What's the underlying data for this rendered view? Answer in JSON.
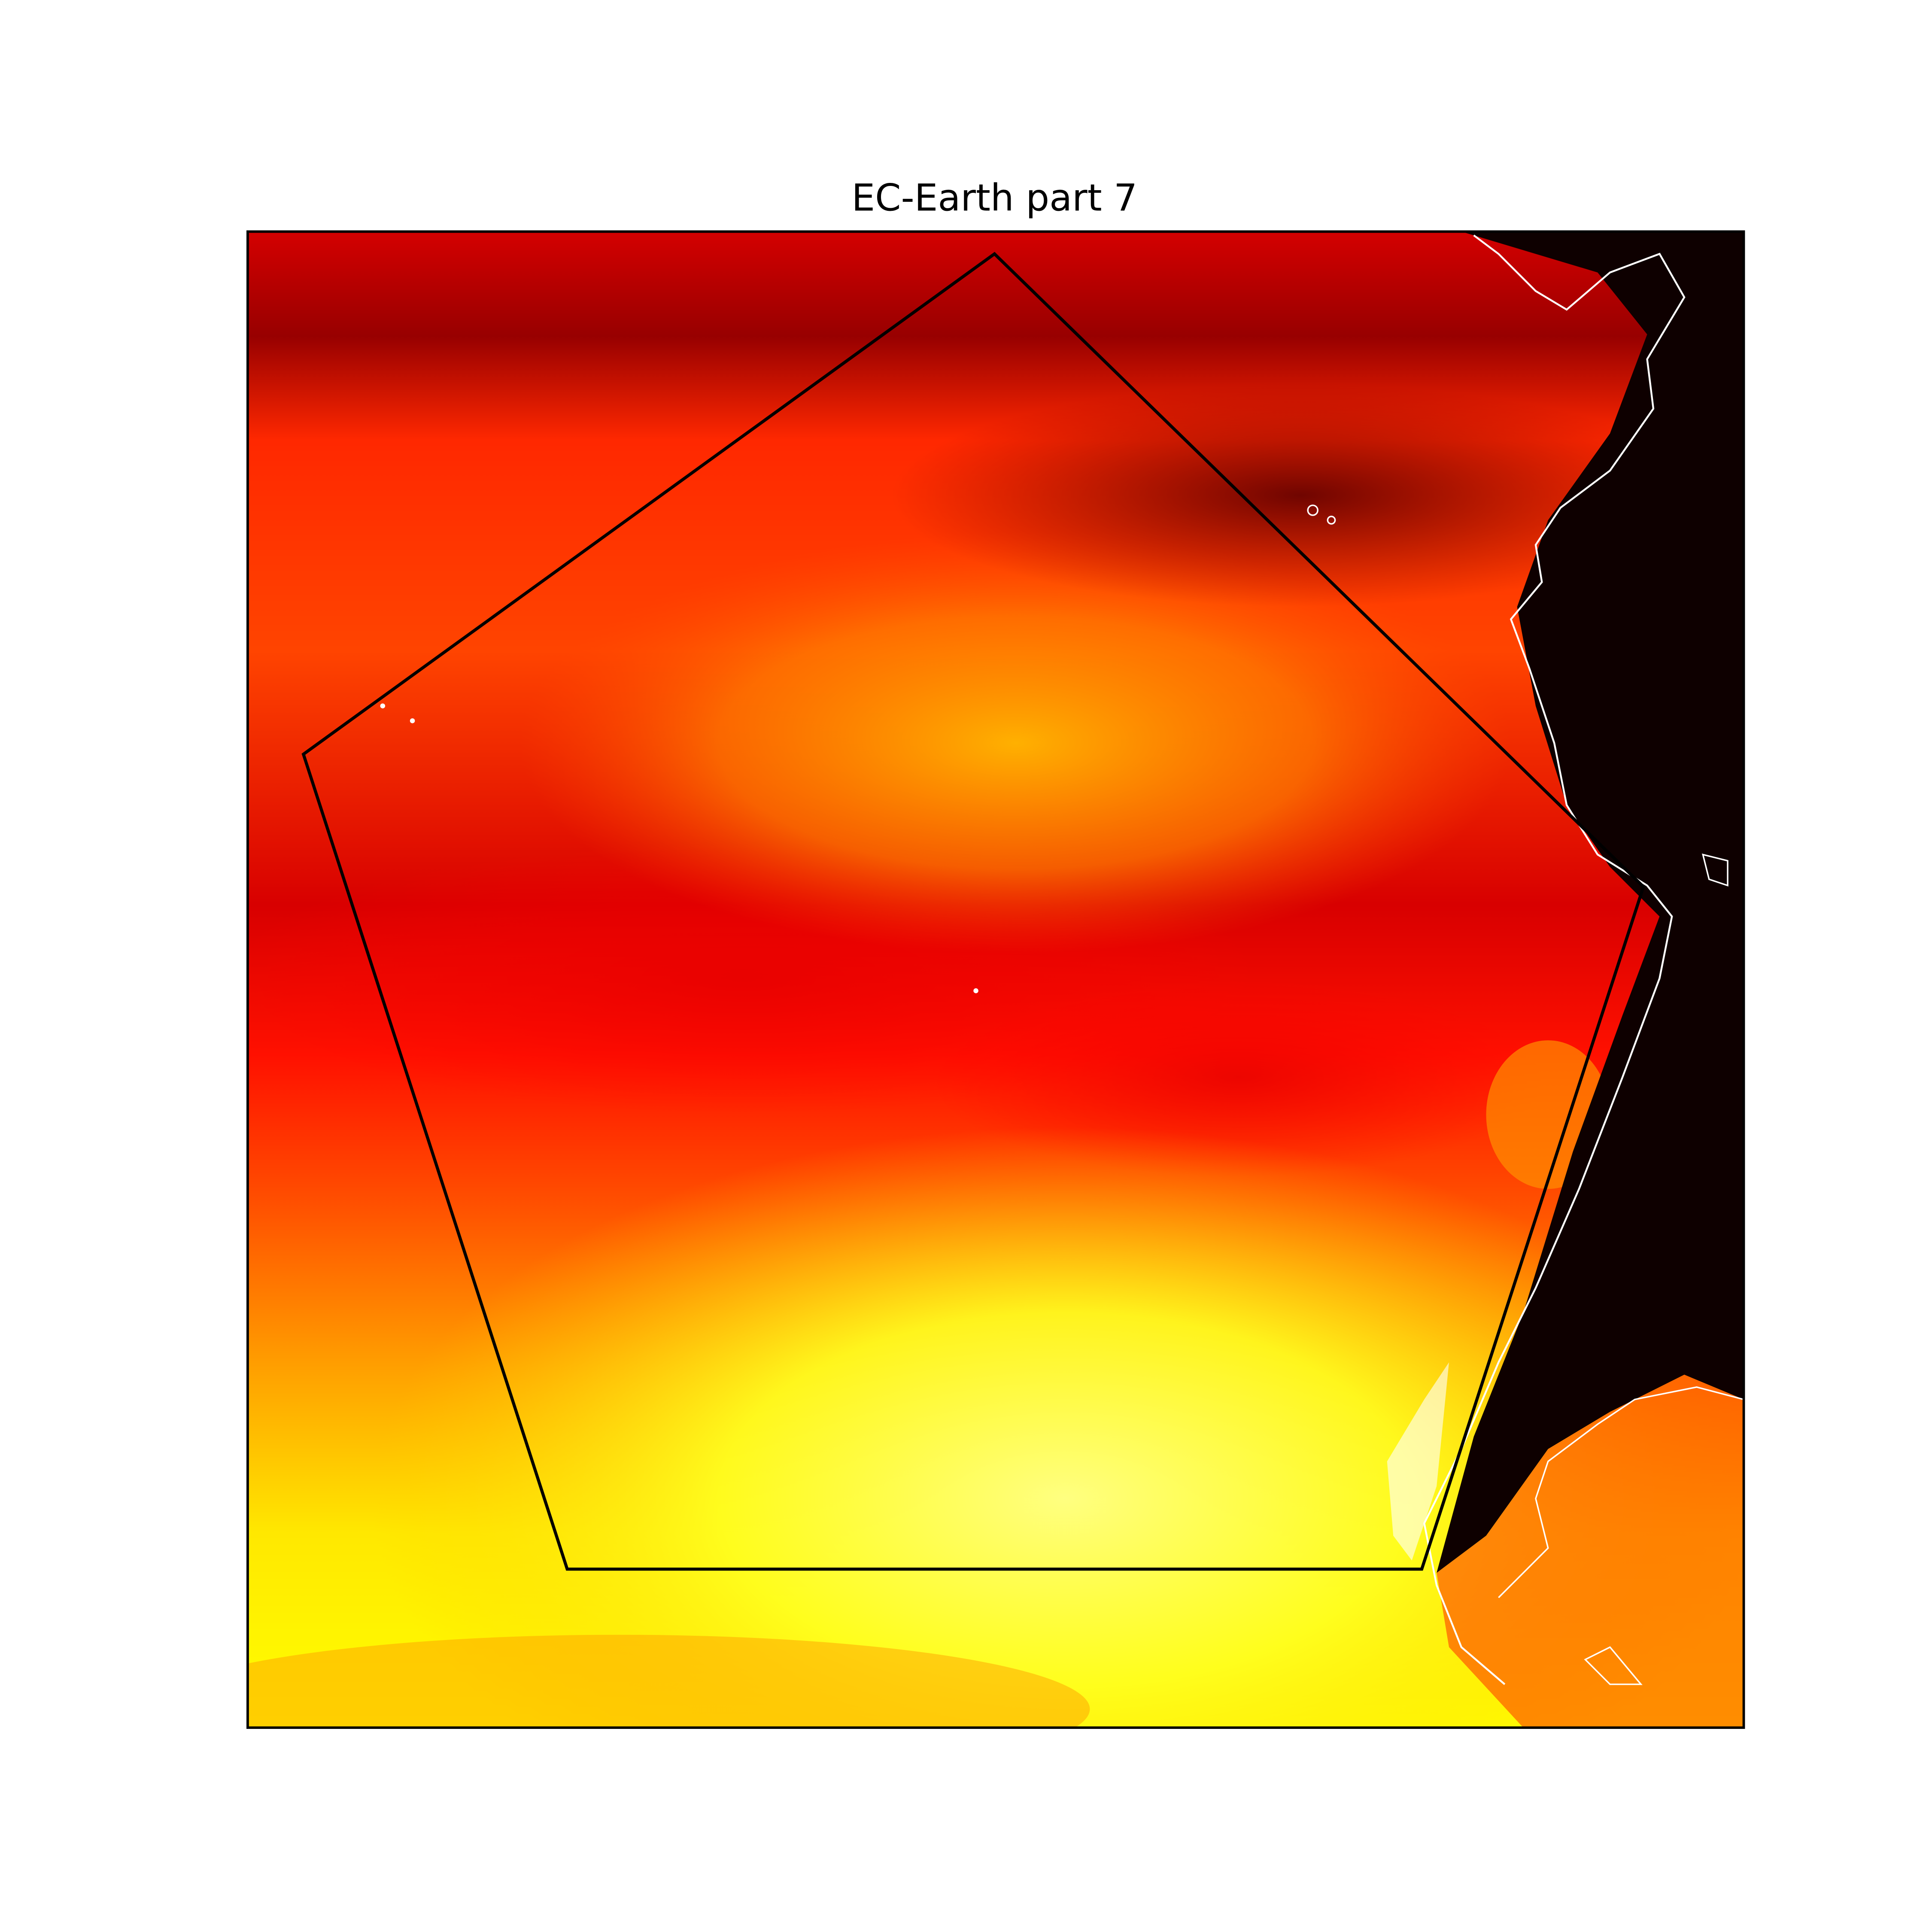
{
  "title": "EC-Earth part 7"
}
